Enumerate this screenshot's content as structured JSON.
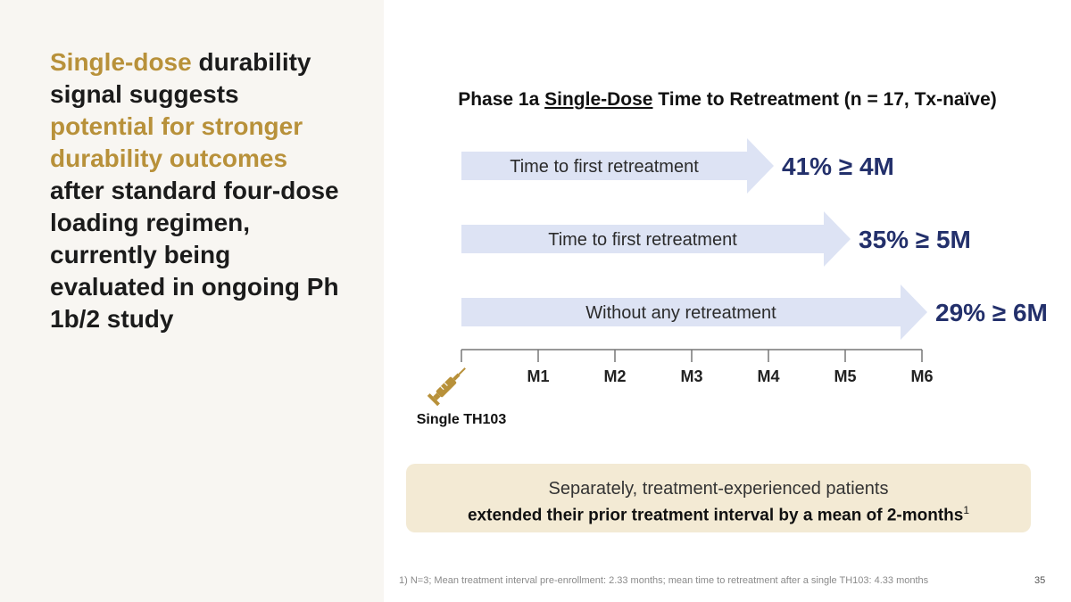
{
  "slide": {
    "headline_parts": [
      {
        "text": "Single-dose",
        "accent": true
      },
      {
        "text": " durability signal suggests ",
        "accent": false
      },
      {
        "text": "potential for stronger durability outcomes",
        "accent": true
      },
      {
        "text": " after standard four-dose loading regimen, currently being evaluated in ongoing Ph 1b/2 study",
        "accent": false
      }
    ],
    "callout": {
      "line1": "Separately, treatment-experienced patients",
      "line2": "extended their prior treatment interval by a mean of 2-months",
      "superscript": "1"
    },
    "footnote": "1)   N=3; Mean treatment interval pre-enrollment: 2.33 months; mean time to retreatment after a single TH103: 4.33 months",
    "page_number": "35"
  },
  "chart_data": {
    "type": "bar",
    "title_parts": [
      "Phase 1a ",
      "Single-Dose",
      " Time to Retreatment (n = 17, Tx-naïve)"
    ],
    "categories": [
      "Time to first retreatment",
      "Time to first retreatment",
      "Without any retreatment"
    ],
    "values": [
      4,
      5,
      6
    ],
    "value_labels": [
      "41% ≥ 4M",
      "35% ≥ 5M",
      "29% ≥ 6M"
    ],
    "x_ticks": [
      "M1",
      "M2",
      "M3",
      "M4",
      "M5",
      "M6"
    ],
    "x_range": [
      0,
      6
    ],
    "origin_label": "Single TH103",
    "origin_icon": "syringe-icon",
    "colors": {
      "bar": "#dde3f4",
      "value_text": "#23306b",
      "accent": "#b8913a",
      "axis": "#777777"
    }
  }
}
